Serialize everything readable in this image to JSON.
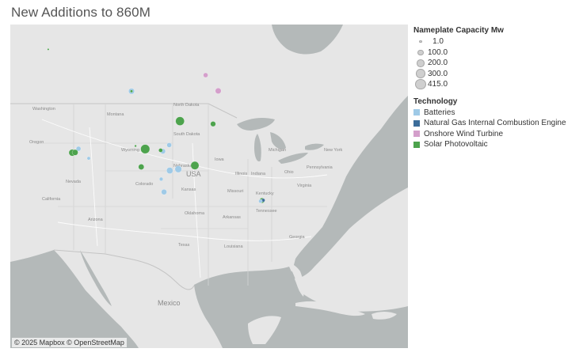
{
  "title": "New Additions to 860M",
  "attribution": "© 2025 Mapbox © OpenStreetMap",
  "map_labels": {
    "usa": "USA",
    "mexico": "Mexico",
    "washington": "Washington",
    "oregon": "Oregon",
    "california": "California",
    "nevada": "Nevada",
    "arizona": "Arizona",
    "montana": "Montana",
    "wyoming": "Wyoming",
    "colorado": "Colorado",
    "north_dakota": "North Dakota",
    "south_dakota": "South Dakota",
    "nebraska": "Nebraska",
    "kansas": "Kansas",
    "oklahoma": "Oklahoma",
    "texas": "Texas",
    "arkansas": "Arkansas",
    "missouri": "Missouri",
    "iowa": "Iowa",
    "illinois": "Illinois",
    "indiana": "Indiana",
    "ohio": "Ohio",
    "michigan": "Michigan",
    "kentucky": "Kentucky",
    "tennessee": "Tennessee",
    "georgia": "Georgia",
    "virginia": "Virginia",
    "pennsylvania": "Pennsylvania",
    "new_york": "New York",
    "louisiana": "Louisiana"
  },
  "legend": {
    "size_title": "Nameplate Capacity Mw",
    "sizes": [
      {
        "label": "1.0",
        "value": 1.0
      },
      {
        "label": "100.0",
        "value": 100.0
      },
      {
        "label": "200.0",
        "value": 200.0
      },
      {
        "label": "300.0",
        "value": 300.0
      },
      {
        "label": "415.0",
        "value": 415.0
      }
    ],
    "tech_title": "Technology",
    "technologies": [
      {
        "label": "Batteries",
        "color": "#9fcae7"
      },
      {
        "label": "Natural Gas Internal Combustion Engine",
        "color": "#3c6d9a"
      },
      {
        "label": "Onshore Wind Turbine",
        "color": "#d49fcb"
      },
      {
        "label": "Solar Photovoltaic",
        "color": "#4da34d"
      }
    ]
  },
  "chart_data": {
    "type": "scatter",
    "basemap": "light-gray",
    "points": [
      {
        "tech": "Solar Photovoltaic",
        "lon": -118.9,
        "lat": 46.6,
        "mw": 1
      },
      {
        "tech": "Batteries",
        "lon": -104.3,
        "lat": 38.9,
        "mw": 150
      },
      {
        "tech": "Solar Photovoltaic",
        "lon": -104.3,
        "lat": 38.9,
        "mw": 30
      },
      {
        "tech": "Onshore Wind Turbine",
        "lon": -91.3,
        "lat": 41.7,
        "mw": 100
      },
      {
        "tech": "Onshore Wind Turbine",
        "lon": -89.1,
        "lat": 40.3,
        "mw": 150
      },
      {
        "tech": "Solar Photovoltaic",
        "lon": -90.0,
        "lat": 36.2,
        "mw": 120
      },
      {
        "tech": "Solar Photovoltaic",
        "lon": -95.8,
        "lat": 35.6,
        "mw": 330
      },
      {
        "tech": "Batteries",
        "lon": -113.6,
        "lat": 33.4,
        "mw": 100
      },
      {
        "tech": "Solar Photovoltaic",
        "lon": -114.7,
        "lat": 33.2,
        "mw": 200
      },
      {
        "tech": "Solar Photovoltaic",
        "lon": -114.2,
        "lat": 33.1,
        "mw": 150
      },
      {
        "tech": "Batteries",
        "lon": -111.8,
        "lat": 31.9,
        "mw": 50
      },
      {
        "tech": "Solar Photovoltaic",
        "lon": -103.6,
        "lat": 32.4,
        "mw": 20
      },
      {
        "tech": "Solar Photovoltaic",
        "lon": -101.9,
        "lat": 32.0,
        "mw": 360
      },
      {
        "tech": "Batteries",
        "lon": -97.7,
        "lat": 32.6,
        "mw": 100
      },
      {
        "tech": "Batteries",
        "lon": -98.8,
        "lat": 31.8,
        "mw": 120
      },
      {
        "tech": "Solar Photovoltaic",
        "lon": -99.2,
        "lat": 31.9,
        "mw": 70
      },
      {
        "tech": "Solar Photovoltaic",
        "lon": -102.6,
        "lat": 29.9,
        "mw": 140
      },
      {
        "tech": "Solar Photovoltaic",
        "lon": -93.2,
        "lat": 30.7,
        "mw": 290
      },
      {
        "tech": "Batteries",
        "lon": -96.1,
        "lat": 29.9,
        "mw": 200
      },
      {
        "tech": "Batteries",
        "lon": -97.6,
        "lat": 29.6,
        "mw": 180
      },
      {
        "tech": "Batteries",
        "lon": -99.1,
        "lat": 28.5,
        "mw": 60
      },
      {
        "tech": "Batteries",
        "lon": -98.6,
        "lat": 27.0,
        "mw": 130
      },
      {
        "tech": "Solar Photovoltaic",
        "lon": -81.4,
        "lat": 29.7,
        "mw": 120
      },
      {
        "tech": "Natural Gas Internal Combustion Engine",
        "lon": -81.2,
        "lat": 29.8,
        "mw": 50
      },
      {
        "tech": "Batteries",
        "lon": -81.7,
        "lat": 29.5,
        "mw": 60
      }
    ]
  }
}
